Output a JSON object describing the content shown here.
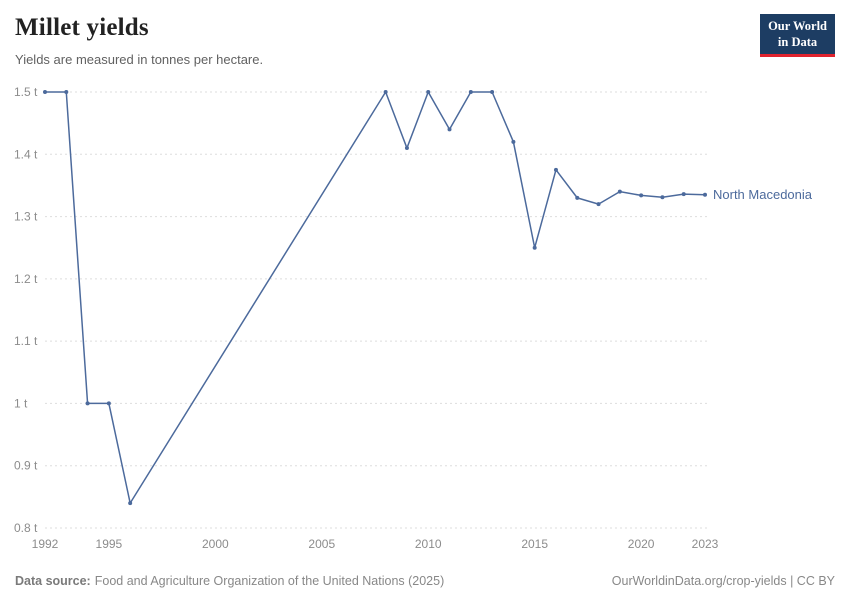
{
  "header": {
    "title": "Millet yields",
    "subtitle": "Yields are measured in tonnes per hectare.",
    "logo": {
      "line1": "Our World",
      "line2": "in Data"
    }
  },
  "colors": {
    "logo_background": "#1d3d63",
    "logo_underline": "#e0232e",
    "series_line": "#4C6A9C"
  },
  "chart_data": {
    "type": "line",
    "title": "Millet yields",
    "unit": "tonnes per hectare",
    "xlabel": "",
    "ylabel": "",
    "xlim": [
      1992,
      2023
    ],
    "ylim": [
      0.8,
      1.5
    ],
    "yticks": [
      0.8,
      0.9,
      1,
      1.1,
      1.2,
      1.3,
      1.4,
      1.5
    ],
    "ytick_labels": [
      "0.8 t",
      "0.9 t",
      "1 t",
      "1.1 t",
      "1.2 t",
      "1.3 t",
      "1.4 t",
      "1.5 t"
    ],
    "xticks": [
      1992,
      1995,
      2000,
      2005,
      2010,
      2015,
      2020,
      2023
    ],
    "grid": "horizontal dotted",
    "legend_position": "end-of-line label",
    "series": [
      {
        "name": "North Macedonia",
        "color": "#4C6A9C",
        "points": [
          [
            1992,
            1.5
          ],
          [
            1993,
            1.5
          ],
          [
            1994,
            1
          ],
          [
            1995,
            1
          ],
          [
            1996,
            0.84
          ],
          [
            2008,
            1.5
          ],
          [
            2009,
            1.41
          ],
          [
            2010,
            1.5
          ],
          [
            2011,
            1.44
          ],
          [
            2012,
            1.5
          ],
          [
            2013,
            1.5
          ],
          [
            2014,
            1.42
          ],
          [
            2015,
            1.25
          ],
          [
            2016,
            1.375
          ],
          [
            2017,
            1.33
          ],
          [
            2018,
            1.32
          ],
          [
            2019,
            1.34
          ],
          [
            2020,
            1.334
          ],
          [
            2021,
            1.331
          ],
          [
            2022,
            1.336
          ],
          [
            2023,
            1.335
          ]
        ]
      }
    ]
  },
  "footer": {
    "source_label": "Data source:",
    "source_text": "Food and Agriculture Organization of the United Nations (2025)",
    "right_text": "OurWorldinData.org/crop-yields | CC BY"
  }
}
